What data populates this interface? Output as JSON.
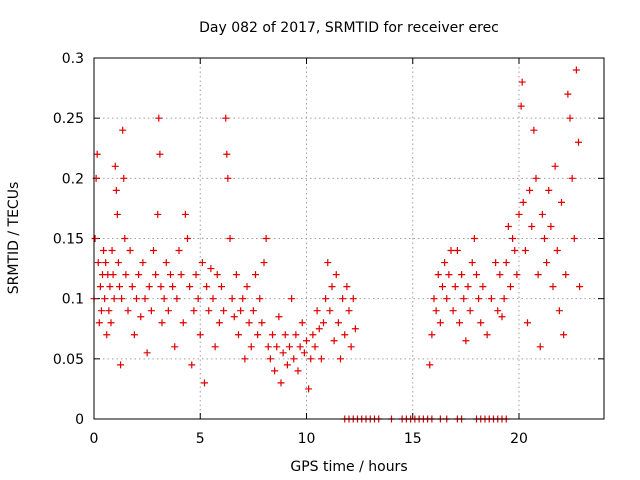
{
  "chart_data": {
    "type": "scatter",
    "title": "Day 082 of 2017, SRMTID for receiver erec",
    "xlabel": "GPS time / hours",
    "ylabel": "SRMTID / TECUs",
    "xlim": [
      0,
      24
    ],
    "ylim": [
      0,
      0.3
    ],
    "xticks": [
      0,
      5,
      10,
      15,
      20
    ],
    "xtick_labels": [
      "0",
      "5",
      "10",
      "15",
      "20"
    ],
    "yticks": [
      0,
      0.05,
      0.1,
      0.15,
      0.2,
      0.25,
      0.3
    ],
    "ytick_labels": [
      "0",
      "0.05",
      "0.1",
      "0.15",
      "0.2",
      "0.25",
      "0.3"
    ],
    "grid": true,
    "legend": "none",
    "marker": "+",
    "color": "#e00000",
    "series": [
      {
        "name": "SRMTID",
        "points": [
          [
            0.0,
            0.1
          ],
          [
            0.05,
            0.15
          ],
          [
            0.1,
            0.2
          ],
          [
            0.15,
            0.22
          ],
          [
            0.2,
            0.13
          ],
          [
            0.25,
            0.08
          ],
          [
            0.3,
            0.11
          ],
          [
            0.35,
            0.09
          ],
          [
            0.4,
            0.12
          ],
          [
            0.45,
            0.14
          ],
          [
            0.5,
            0.1
          ],
          [
            0.55,
            0.13
          ],
          [
            0.6,
            0.07
          ],
          [
            0.65,
            0.12
          ],
          [
            0.7,
            0.09
          ],
          [
            0.75,
            0.11
          ],
          [
            0.8,
            0.08
          ],
          [
            0.85,
            0.14
          ],
          [
            0.9,
            0.12
          ],
          [
            0.95,
            0.1
          ],
          [
            1.0,
            0.21
          ],
          [
            1.05,
            0.19
          ],
          [
            1.1,
            0.17
          ],
          [
            1.15,
            0.13
          ],
          [
            1.2,
            0.11
          ],
          [
            1.25,
            0.045
          ],
          [
            1.3,
            0.1
          ],
          [
            1.35,
            0.24
          ],
          [
            1.4,
            0.2
          ],
          [
            1.45,
            0.15
          ],
          [
            1.5,
            0.12
          ],
          [
            1.6,
            0.09
          ],
          [
            1.7,
            0.14
          ],
          [
            1.8,
            0.11
          ],
          [
            1.9,
            0.07
          ],
          [
            2.0,
            0.1
          ],
          [
            2.1,
            0.12
          ],
          [
            2.2,
            0.085
          ],
          [
            2.3,
            0.13
          ],
          [
            2.4,
            0.1
          ],
          [
            2.5,
            0.055
          ],
          [
            2.6,
            0.11
          ],
          [
            2.7,
            0.09
          ],
          [
            2.8,
            0.14
          ],
          [
            2.9,
            0.12
          ],
          [
            3.0,
            0.17
          ],
          [
            3.05,
            0.25
          ],
          [
            3.1,
            0.22
          ],
          [
            3.15,
            0.11
          ],
          [
            3.2,
            0.08
          ],
          [
            3.3,
            0.1
          ],
          [
            3.4,
            0.13
          ],
          [
            3.5,
            0.09
          ],
          [
            3.6,
            0.12
          ],
          [
            3.7,
            0.11
          ],
          [
            3.8,
            0.06
          ],
          [
            3.9,
            0.1
          ],
          [
            4.0,
            0.14
          ],
          [
            4.1,
            0.12
          ],
          [
            4.2,
            0.08
          ],
          [
            4.3,
            0.17
          ],
          [
            4.4,
            0.15
          ],
          [
            4.5,
            0.11
          ],
          [
            4.6,
            0.045
          ],
          [
            4.7,
            0.09
          ],
          [
            4.8,
            0.12
          ],
          [
            4.9,
            0.1
          ],
          [
            5.0,
            0.07
          ],
          [
            5.1,
            0.13
          ],
          [
            5.2,
            0.03
          ],
          [
            5.3,
            0.11
          ],
          [
            5.4,
            0.09
          ],
          [
            5.5,
            0.125
          ],
          [
            5.6,
            0.1
          ],
          [
            5.7,
            0.06
          ],
          [
            5.8,
            0.12
          ],
          [
            5.9,
            0.08
          ],
          [
            6.0,
            0.11
          ],
          [
            6.1,
            0.09
          ],
          [
            6.2,
            0.25
          ],
          [
            6.25,
            0.22
          ],
          [
            6.3,
            0.2
          ],
          [
            6.4,
            0.15
          ],
          [
            6.5,
            0.1
          ],
          [
            6.6,
            0.085
          ],
          [
            6.7,
            0.12
          ],
          [
            6.8,
            0.07
          ],
          [
            6.9,
            0.09
          ],
          [
            7.0,
            0.1
          ],
          [
            7.1,
            0.05
          ],
          [
            7.2,
            0.11
          ],
          [
            7.3,
            0.08
          ],
          [
            7.4,
            0.06
          ],
          [
            7.5,
            0.09
          ],
          [
            7.6,
            0.12
          ],
          [
            7.7,
            0.07
          ],
          [
            7.8,
            0.1
          ],
          [
            7.9,
            0.08
          ],
          [
            8.0,
            0.13
          ],
          [
            8.1,
            0.15
          ],
          [
            8.2,
            0.06
          ],
          [
            8.3,
            0.05
          ],
          [
            8.4,
            0.07
          ],
          [
            8.5,
            0.04
          ],
          [
            8.6,
            0.06
          ],
          [
            8.7,
            0.085
          ],
          [
            8.8,
            0.03
          ],
          [
            8.9,
            0.055
          ],
          [
            9.0,
            0.07
          ],
          [
            9.1,
            0.045
          ],
          [
            9.2,
            0.06
          ],
          [
            9.3,
            0.1
          ],
          [
            9.4,
            0.05
          ],
          [
            9.5,
            0.07
          ],
          [
            9.6,
            0.04
          ],
          [
            9.7,
            0.06
          ],
          [
            9.8,
            0.08
          ],
          [
            9.9,
            0.055
          ],
          [
            10.0,
            0.065
          ],
          [
            10.1,
            0.025
          ],
          [
            10.2,
            0.05
          ],
          [
            10.3,
            0.07
          ],
          [
            10.4,
            0.06
          ],
          [
            10.5,
            0.09
          ],
          [
            10.6,
            0.075
          ],
          [
            10.7,
            0.05
          ],
          [
            10.8,
            0.08
          ],
          [
            10.9,
            0.1
          ],
          [
            11.0,
            0.13
          ],
          [
            11.1,
            0.09
          ],
          [
            11.2,
            0.11
          ],
          [
            11.3,
            0.065
          ],
          [
            11.4,
            0.12
          ],
          [
            11.5,
            0.08
          ],
          [
            11.6,
            0.05
          ],
          [
            11.7,
            0.1
          ],
          [
            11.8,
            0.07
          ],
          [
            11.9,
            0.11
          ],
          [
            12.0,
            0.09
          ],
          [
            12.1,
            0.06
          ],
          [
            12.2,
            0.1
          ],
          [
            12.3,
            0.075
          ],
          [
            11.8,
            0
          ],
          [
            12.0,
            0
          ],
          [
            12.2,
            0
          ],
          [
            12.4,
            0
          ],
          [
            12.6,
            0
          ],
          [
            12.8,
            0
          ],
          [
            13.0,
            0
          ],
          [
            13.2,
            0
          ],
          [
            13.4,
            0
          ],
          [
            14.0,
            0
          ],
          [
            14.5,
            0
          ],
          [
            14.7,
            0
          ],
          [
            14.9,
            0
          ],
          [
            15.1,
            0
          ],
          [
            15.3,
            0
          ],
          [
            15.5,
            0
          ],
          [
            15.7,
            0
          ],
          [
            15.9,
            0
          ],
          [
            16.3,
            0
          ],
          [
            16.6,
            0
          ],
          [
            17.1,
            0
          ],
          [
            17.3,
            0
          ],
          [
            18.0,
            0
          ],
          [
            18.2,
            0
          ],
          [
            18.4,
            0
          ],
          [
            18.6,
            0
          ],
          [
            18.8,
            0
          ],
          [
            19.0,
            0
          ],
          [
            19.2,
            0
          ],
          [
            19.4,
            0
          ],
          [
            15.8,
            0.045
          ],
          [
            15.9,
            0.07
          ],
          [
            16.0,
            0.1
          ],
          [
            16.1,
            0.09
          ],
          [
            16.2,
            0.12
          ],
          [
            16.3,
            0.08
          ],
          [
            16.4,
            0.11
          ],
          [
            16.5,
            0.13
          ],
          [
            16.6,
            0.1
          ],
          [
            16.7,
            0.12
          ],
          [
            16.8,
            0.14
          ],
          [
            16.9,
            0.09
          ],
          [
            17.0,
            0.11
          ],
          [
            17.1,
            0.14
          ],
          [
            17.2,
            0.08
          ],
          [
            17.3,
            0.12
          ],
          [
            17.4,
            0.1
          ],
          [
            17.5,
            0.065
          ],
          [
            17.6,
            0.11
          ],
          [
            17.7,
            0.09
          ],
          [
            17.8,
            0.13
          ],
          [
            17.9,
            0.15
          ],
          [
            18.0,
            0.12
          ],
          [
            18.1,
            0.1
          ],
          [
            18.2,
            0.08
          ],
          [
            18.3,
            0.11
          ],
          [
            18.5,
            0.07
          ],
          [
            18.7,
            0.1
          ],
          [
            18.9,
            0.13
          ],
          [
            19.0,
            0.09
          ],
          [
            19.1,
            0.12
          ],
          [
            19.2,
            0.085
          ],
          [
            19.3,
            0.1
          ],
          [
            19.4,
            0.13
          ],
          [
            19.5,
            0.16
          ],
          [
            19.6,
            0.11
          ],
          [
            19.7,
            0.15
          ],
          [
            19.8,
            0.14
          ],
          [
            19.9,
            0.12
          ],
          [
            20.0,
            0.17
          ],
          [
            20.1,
            0.26
          ],
          [
            20.15,
            0.28
          ],
          [
            20.2,
            0.18
          ],
          [
            20.3,
            0.14
          ],
          [
            20.4,
            0.08
          ],
          [
            20.5,
            0.19
          ],
          [
            20.6,
            0.16
          ],
          [
            20.7,
            0.24
          ],
          [
            20.8,
            0.2
          ],
          [
            20.9,
            0.12
          ],
          [
            21.0,
            0.06
          ],
          [
            21.1,
            0.17
          ],
          [
            21.2,
            0.15
          ],
          [
            21.3,
            0.13
          ],
          [
            21.4,
            0.19
          ],
          [
            21.5,
            0.16
          ],
          [
            21.6,
            0.11
          ],
          [
            21.7,
            0.21
          ],
          [
            21.8,
            0.14
          ],
          [
            21.9,
            0.09
          ],
          [
            22.0,
            0.18
          ],
          [
            22.1,
            0.07
          ],
          [
            22.2,
            0.12
          ],
          [
            22.3,
            0.27
          ],
          [
            22.4,
            0.25
          ],
          [
            22.5,
            0.2
          ],
          [
            22.6,
            0.15
          ],
          [
            22.7,
            0.29
          ],
          [
            22.8,
            0.23
          ],
          [
            22.85,
            0.11
          ]
        ]
      }
    ]
  }
}
